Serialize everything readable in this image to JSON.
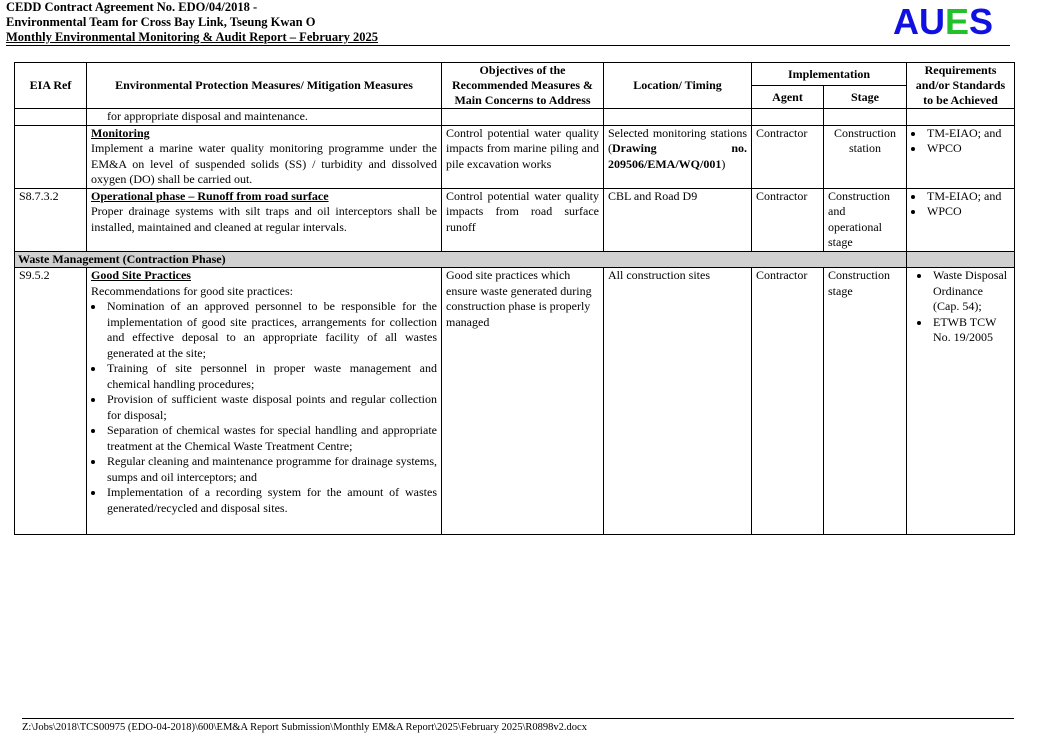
{
  "header": {
    "line1": "CEDD Contract Agreement No. EDO/04/2018 -",
    "line2": "Environmental Team for Cross Bay Link, Tseung Kwan O",
    "line3": "Monthly Environmental Monitoring & Audit Report – February 2025"
  },
  "logo": {
    "letters": [
      "A",
      "U",
      "E",
      "S"
    ],
    "colors": [
      "#1010e0",
      "#1010e0",
      "#22c02a",
      "#1010e0"
    ]
  },
  "table": {
    "headers": {
      "eia_ref": "EIA Ref",
      "measures": "Environmental Protection Measures/ Mitigation Measures",
      "objectives": "Objectives of the Recommended Measures & Main Concerns to Address",
      "location": "Location/ Timing",
      "implementation": "Implementation",
      "agent": "Agent",
      "stage": "Stage",
      "requirements": "Requirements and/or Standards to be Achieved"
    },
    "row0": {
      "measures": "for appropriate disposal and maintenance."
    },
    "row1": {
      "ref": "",
      "title": "Monitoring",
      "text": "Implement a marine water quality monitoring programme under the EM&A on level of suspended solids (SS) / turbidity and dissolved oxygen (DO) shall be carried out.",
      "objectives": "Control potential water quality impacts from marine piling and pile excavation works",
      "location_pre": "Selected monitoring stations (",
      "location_bold": "Drawing no. 209506/EMA/WQ/001",
      "location_post": ")",
      "agent": "Contractor",
      "stage": "Construction station",
      "requirements": [
        "TM-EIAO; and",
        "WPCO"
      ]
    },
    "row2": {
      "ref": "S8.7.3.2",
      "title": "Operational phase – Runoff from road surface",
      "text": "Proper drainage systems with silt traps and oil interceptors shall be installed, maintained and cleaned at regular intervals.",
      "objectives": "Control potential water quality impacts from road surface runoff",
      "location": "CBL and Road D9",
      "agent": "Contractor",
      "stage": "Construction and operational stage",
      "requirements": [
        "TM-EIAO; and",
        "WPCO"
      ]
    },
    "section": "Waste Management (Contraction Phase)",
    "row3": {
      "ref": "S9.5.2",
      "title": "Good Site Practices",
      "text": "Recommendations for good site practices:",
      "bullets": [
        "Nomination of an approved personnel to be responsible for the implementation of good site practices, arrangements for collection and effective deposal to an appropriate facility of all wastes generated at the site;",
        "Training of site personnel in proper waste management and chemical handling procedures;",
        "Provision of sufficient waste disposal points and regular collection for disposal;",
        "Separation of chemical wastes for special handling and appropriate treatment at the Chemical Waste Treatment Centre;",
        "Regular cleaning and maintenance programme for drainage systems, sumps and oil interceptors; and",
        "Implementation of a recording system for the amount of wastes generated/recycled and disposal sites."
      ],
      "objectives": "Good site practices which ensure waste generated during construction phase is properly managed",
      "location": "All construction sites",
      "agent": "Contractor",
      "stage": "Construction stage",
      "requirements": [
        "Waste Disposal Ordinance (Cap. 54);",
        "ETWB TCW No. 19/2005"
      ]
    }
  },
  "footer": {
    "path": "Z:\\Jobs\\2018\\TCS00975 (EDO-04-2018)\\600\\EM&A Report Submission\\Monthly EM&A Report\\2025\\February 2025\\R0898v2.docx"
  }
}
